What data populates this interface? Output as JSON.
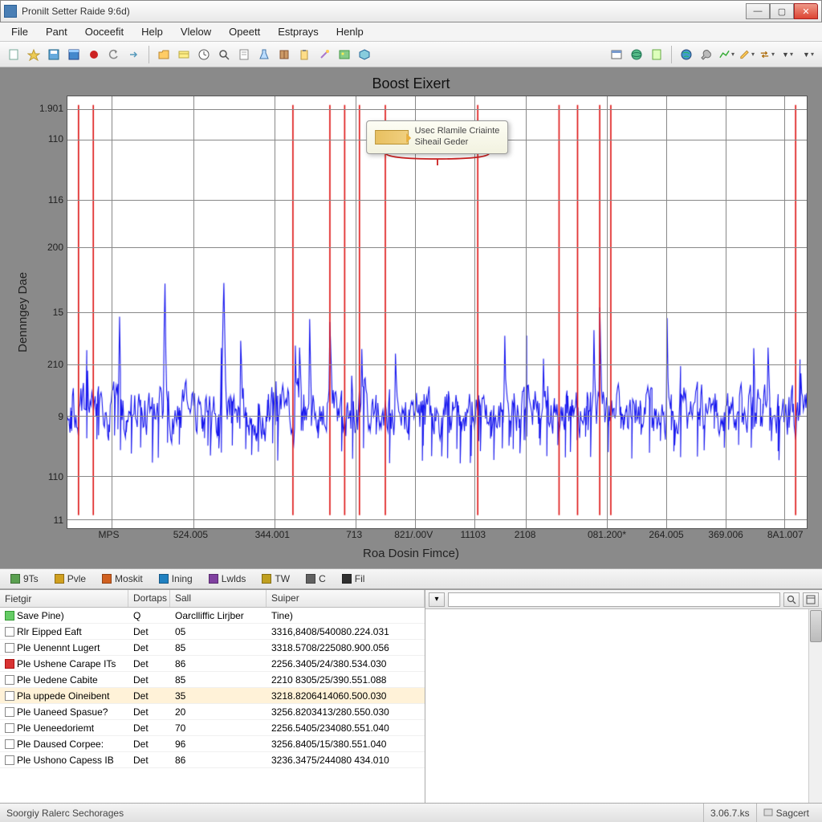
{
  "window": {
    "title": "Pronilt Setter Raide 9:6d)",
    "controls": {
      "min": "—",
      "max": "▢",
      "close": "✕"
    }
  },
  "menu": [
    "File",
    "Pant",
    "Ooceefit",
    "Help",
    "Vlelow",
    "Opeett",
    "Estprays",
    "Henlp"
  ],
  "toolbar": {
    "group1": [
      "page",
      "wizard",
      "save-alt",
      "panel",
      "record",
      "undo",
      "arrow"
    ],
    "group2": [
      "folder",
      "card",
      "clock",
      "zoom",
      "doc",
      "flask",
      "book",
      "clipboard",
      "wand",
      "image",
      "cube"
    ],
    "group3": [
      "window",
      "globe",
      "sheet"
    ],
    "group4": [
      "world",
      "tool",
      "line",
      "pencil",
      "swap"
    ]
  },
  "chart": {
    "title": "Boost Eixert",
    "ylabel": "Dennngey Dae",
    "xlabel": "Roa Dosin Fimce)",
    "tooltip": {
      "line1": "Usec Rlamile Criainte",
      "line2": "Siheail Geder"
    },
    "background": "#ffffff",
    "panel_bg": "#8a8a8a",
    "grid_color": "#888888",
    "signal_color": "#1818ee",
    "marker_color": "#dd1010",
    "yticks": [
      {
        "pos": 0.03,
        "label": "1.901"
      },
      {
        "pos": 0.1,
        "label": "110"
      },
      {
        "pos": 0.24,
        "label": "116"
      },
      {
        "pos": 0.35,
        "label": "200"
      },
      {
        "pos": 0.5,
        "label": "15"
      },
      {
        "pos": 0.62,
        "label": "210"
      },
      {
        "pos": 0.74,
        "label": "9"
      },
      {
        "pos": 0.88,
        "label": "110"
      },
      {
        "pos": 0.98,
        "label": "11"
      }
    ],
    "xticks": [
      {
        "pos": 0.06,
        "label": "MPS"
      },
      {
        "pos": 0.17,
        "label": "524.005"
      },
      {
        "pos": 0.28,
        "label": "344.001"
      },
      {
        "pos": 0.39,
        "label": "713"
      },
      {
        "pos": 0.47,
        "label": "821/.00V"
      },
      {
        "pos": 0.55,
        "label": "11103"
      },
      {
        "pos": 0.62,
        "label": "2108"
      },
      {
        "pos": 0.73,
        "label": "081.200*"
      },
      {
        "pos": 0.81,
        "label": "264.005"
      },
      {
        "pos": 0.89,
        "label": "369.006"
      },
      {
        "pos": 0.97,
        "label": "8A1.007"
      }
    ],
    "hgrid": [
      0.03,
      0.1,
      0.24,
      0.35,
      0.5,
      0.62,
      0.74,
      0.88,
      0.98
    ],
    "vgrid": [
      0.06,
      0.17,
      0.28,
      0.39,
      0.47,
      0.55,
      0.62,
      0.73,
      0.81,
      0.89,
      0.97
    ],
    "markers_x": [
      0.015,
      0.035,
      0.305,
      0.355,
      0.375,
      0.395,
      0.43,
      0.555,
      0.665,
      0.69,
      0.72,
      0.735,
      0.985
    ],
    "signal": {
      "n_points": 880,
      "baseline": 0.73,
      "noise_amp": 0.1,
      "spike_prob": 0.035,
      "spike_min": 0.18,
      "spike_max": 0.5,
      "seed": 424217
    }
  },
  "tabs": [
    {
      "icon": "#5aa050",
      "label": "9Ts"
    },
    {
      "icon": "#d0a020",
      "label": "Pvle"
    },
    {
      "icon": "#d06020",
      "label": "Moskit"
    },
    {
      "icon": "#2080c0",
      "label": "Ining"
    },
    {
      "icon": "#8040a0",
      "label": "Lwlds"
    },
    {
      "icon": "#c0a020",
      "label": "TW"
    },
    {
      "icon": "#606060",
      "label": "C"
    },
    {
      "icon": "#303030",
      "label": "Fil"
    }
  ],
  "list": {
    "columns": [
      "Fietgir",
      "Dortaps",
      "Sall",
      "Suiper"
    ],
    "header2": [
      "Save Pine)",
      "Q",
      "Oarclliffic Lirjber",
      "Tine)"
    ],
    "header2_icon": "grn",
    "rows": [
      {
        "chk": "",
        "c0": "Rlr Eipped Eaft",
        "c1": "Det",
        "c2": "05",
        "c3": "3316,8408/540080.224.031",
        "hilite": false
      },
      {
        "chk": "",
        "c0": "Ple Uenennt Lugert",
        "c1": "Det",
        "c2": "85",
        "c3": "3318.5708/225080.900.056",
        "hilite": false
      },
      {
        "chk": "red",
        "c0": "Ple Ushene Carape ITs",
        "c1": "Det",
        "c2": "86",
        "c3": "2256.3405/24/380.534.030",
        "hilite": false
      },
      {
        "chk": "",
        "c0": "Ple Uedene Cabite",
        "c1": "Det",
        "c2": "85",
        "c3": "2210 8305/25/390.551.088",
        "hilite": false
      },
      {
        "chk": "",
        "c0": "Pla uppede Oineibent",
        "c1": "Det",
        "c2": "35",
        "c3": "3218.8206414060.500.030",
        "hilite": true
      },
      {
        "chk": "",
        "c0": "Ple Uaneed Spasue?",
        "c1": "Det",
        "c2": "20",
        "c3": "3256.8203413/280.550.030",
        "hilite": false
      },
      {
        "chk": "",
        "c0": "Ple Ueneedoriemt",
        "c1": "Det",
        "c2": "70",
        "c3": "2256.5405/234080.551.040",
        "hilite": false
      },
      {
        "chk": "",
        "c0": "Ple Daused Corpee:",
        "c1": "Det",
        "c2": "96",
        "c3": "3256.8405/15/380.551.040",
        "hilite": false
      },
      {
        "chk": "",
        "c0": "Ple Ushono Capess IB",
        "c1": "Det",
        "c2": "86",
        "c3": "3236.3475/244080 434.010",
        "hilite": false
      }
    ]
  },
  "detail": {
    "dropdown_icon": "▾",
    "search": ""
  },
  "status": {
    "left": "Soorgiy Ralerc Sechorages",
    "version": "3.06.7.ks",
    "right": "Sagcert"
  }
}
